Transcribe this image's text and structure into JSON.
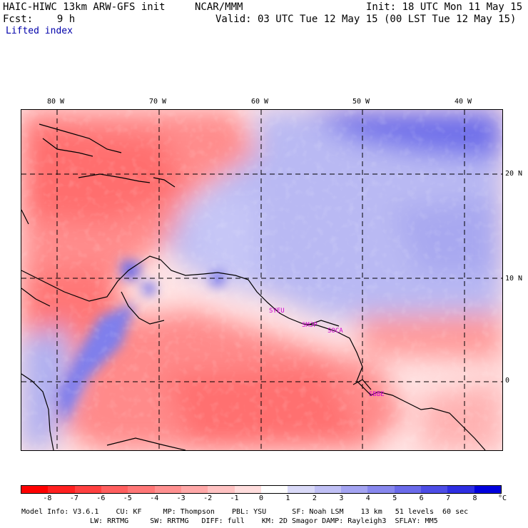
{
  "header": {
    "model": "HAIC-HIWC 13km ARW-GFS init",
    "org": "NCAR/MMM",
    "init": "Init: 18 UTC Mon 11 May 15",
    "fcst": "Fcst:    9 h",
    "valid": "Valid: 03 UTC Tue 12 May 15 (00 LST Tue 12 May 15)",
    "field": "Lifted index"
  },
  "axes": {
    "lon": [
      "80 W",
      "70 W",
      "60 W",
      "50 W",
      "40 W"
    ],
    "lat": [
      "20 N",
      "10 N",
      "0"
    ]
  },
  "stations": [
    "SYEU",
    "SMJP",
    "SOCA",
    "SBBE"
  ],
  "colorbar": {
    "ticks": [
      "-8",
      "-7",
      "-6",
      "-5",
      "-4",
      "-3",
      "-2",
      "-1",
      "0",
      "1",
      "2",
      "3",
      "4",
      "5",
      "6",
      "7",
      "8"
    ],
    "unit": "°C",
    "colors": [
      "#ff0000",
      "#ff2020",
      "#ff4040",
      "#ff5f5f",
      "#ff7777",
      "#ff9090",
      "#ffa8a8",
      "#ffc2c2",
      "#ffdddd",
      "#ffffff",
      "#dadaf8",
      "#c0c0f5",
      "#a4a4f2",
      "#8888ee",
      "#6b6bea",
      "#4d4de6",
      "#2e2ee2",
      "#0000dd"
    ]
  },
  "footer": {
    "line1": "Model Info: V3.6.1    CU: KF     MP: Thompson    PBL: YSU      SF: Noah LSM    13 km   51 levels  60 sec",
    "line2": "LW: RRTMG     SW: RRTMG   DIFF: full    KM: 2D Smagor DAMP: Rayleigh3  SFLAY: MM5"
  }
}
